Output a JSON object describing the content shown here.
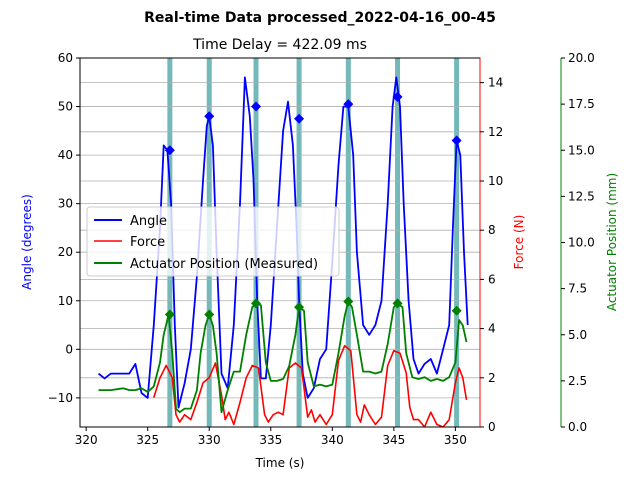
{
  "chart_data": {
    "type": "line",
    "title": "Real-time Data processed_2022-04-16_00-45",
    "subtitle": "Time Delay = 422.09 ms",
    "xlabel": "Time (s)",
    "xlim": [
      319.5,
      352
    ],
    "xticks": [
      320,
      325,
      330,
      335,
      340,
      345,
      350
    ],
    "grid": "horizontal",
    "legend_position": "center-left",
    "axes": {
      "left": {
        "label": "Angle (degrees)",
        "color": "#0000ff",
        "ylim": [
          -16,
          60
        ],
        "ticks": [
          -10,
          0,
          10,
          20,
          30,
          40,
          50,
          60
        ]
      },
      "right1": {
        "label": "Force (N)",
        "color": "#ff0000",
        "ylim": [
          0,
          15
        ],
        "ticks": [
          0,
          2,
          4,
          6,
          8,
          10,
          12,
          14
        ]
      },
      "right2": {
        "label": "Actuator Position (mm)",
        "color": "#008000",
        "ylim": [
          0,
          20
        ],
        "ticks": [
          "0.0",
          "2.5",
          "5.0",
          "7.5",
          "10.0",
          "12.5",
          "15.0",
          "17.5",
          "20.0"
        ]
      }
    },
    "legend": [
      "Angle",
      "Force",
      "Actuator Position (Measured)"
    ],
    "events": [
      326.8,
      330.0,
      333.8,
      337.3,
      341.3,
      345.3,
      350.1
    ],
    "series": [
      {
        "name": "Angle",
        "color": "#0000ff",
        "axis": "left",
        "x": [
          321,
          321.5,
          322,
          322.5,
          323,
          323.5,
          324,
          324.5,
          325,
          325.5,
          326,
          326.3,
          326.6,
          326.9,
          327.2,
          327.5,
          328,
          328.5,
          329,
          329.5,
          329.8,
          330,
          330.3,
          330.6,
          331,
          331.5,
          332,
          332.5,
          332.9,
          333.3,
          333.6,
          333.9,
          334.2,
          334.6,
          335,
          335.5,
          336,
          336.4,
          336.8,
          337.1,
          337.3,
          337.6,
          338,
          338.5,
          339,
          339.5,
          340,
          340.5,
          340.9,
          341.3,
          341.7,
          342,
          342.5,
          343,
          343.5,
          344,
          344.5,
          344.9,
          345.2,
          345.5,
          345.8,
          346.2,
          346.6,
          347,
          347.5,
          348,
          348.5,
          349,
          349.5,
          349.8,
          350.1,
          350.4,
          350.7,
          351
        ],
        "y": [
          -5,
          -6,
          -5,
          -5,
          -5,
          -5,
          -3,
          -9,
          -10,
          5,
          25,
          42,
          41,
          30,
          5,
          -12,
          -7,
          0,
          15,
          35,
          46,
          48,
          42,
          20,
          -5,
          -8,
          5,
          30,
          56,
          48,
          35,
          10,
          -6,
          -6,
          5,
          25,
          45,
          51,
          42,
          25,
          10,
          -5,
          -10,
          -8,
          -2,
          0,
          18,
          38,
          50,
          50,
          40,
          20,
          5,
          3,
          5,
          10,
          30,
          50,
          56,
          50,
          30,
          10,
          -2,
          -5,
          -3,
          -2,
          -5,
          0,
          5,
          25,
          43,
          40,
          20,
          5
        ]
      },
      {
        "name": "Force",
        "color": "#ff0000",
        "axis": "right1",
        "x": [
          325.5,
          326,
          326.5,
          327,
          327.3,
          327.6,
          328,
          328.5,
          329,
          329.5,
          330,
          330.5,
          331,
          331.3,
          331.6,
          332,
          332.5,
          333,
          333.5,
          334,
          334.5,
          334.8,
          335.2,
          335.6,
          336,
          336.5,
          337,
          337.5,
          338,
          338.3,
          338.6,
          339,
          339.5,
          340,
          340.5,
          341,
          341.5,
          342,
          342.3,
          342.6,
          343,
          343.5,
          344,
          344.5,
          345,
          345.5,
          346,
          346.3,
          346.6,
          347,
          347.5,
          348,
          348.5,
          349,
          349.5,
          350,
          350.3,
          350.6,
          350.9
        ],
        "y": [
          1.2,
          2.0,
          2.5,
          2.0,
          0.5,
          0.2,
          0.5,
          0.3,
          1.0,
          1.8,
          2.0,
          2.6,
          1.3,
          0.3,
          0.6,
          0.1,
          1.0,
          2.0,
          2.5,
          2.4,
          0.5,
          0.2,
          0.5,
          0.6,
          0.5,
          2.4,
          2.6,
          2.4,
          0.4,
          0.7,
          0.2,
          0.5,
          0.1,
          0.5,
          2.7,
          3.3,
          3.1,
          0.5,
          0.2,
          0.9,
          0.5,
          0.1,
          0.4,
          2.5,
          3.1,
          3.0,
          2.2,
          0.8,
          0.3,
          0.3,
          0.0,
          0.6,
          0.1,
          0.0,
          0.3,
          1.8,
          2.4,
          2.0,
          1.1
        ]
      },
      {
        "name": "Actuator Position (Measured)",
        "color": "#008000",
        "axis": "right2",
        "x": [
          321,
          322,
          323,
          323.5,
          324,
          324.5,
          325,
          325.5,
          326,
          326.3,
          326.7,
          327,
          327.3,
          327.6,
          328,
          328.5,
          329,
          329.3,
          329.7,
          330,
          330.3,
          330.6,
          331,
          331.5,
          332,
          332.5,
          333,
          333.5,
          333.8,
          334.2,
          334.6,
          335,
          335.5,
          336,
          336.5,
          337,
          337.3,
          337.7,
          338,
          338.5,
          339,
          339.5,
          340,
          340.5,
          341,
          341.3,
          341.6,
          342,
          342.5,
          343,
          343.5,
          344,
          344.5,
          345,
          345.3,
          345.7,
          346,
          346.5,
          347,
          347.5,
          348,
          348.5,
          349,
          349.5,
          350,
          350.3,
          350.6,
          350.9
        ],
        "y": [
          2.0,
          2.0,
          2.1,
          2.0,
          2.0,
          2.1,
          1.9,
          2.2,
          3.5,
          5.0,
          6.1,
          4.0,
          1.0,
          0.8,
          1.0,
          1.0,
          2.0,
          4.0,
          5.5,
          6.1,
          5.5,
          4.0,
          0.8,
          2.0,
          3.0,
          3.0,
          5.0,
          6.5,
          6.7,
          6.6,
          3.5,
          2.5,
          2.5,
          2.6,
          3.3,
          5.0,
          6.5,
          6.3,
          3.5,
          2.2,
          2.3,
          2.2,
          2.3,
          4.0,
          6.0,
          6.8,
          6.5,
          5.0,
          3.0,
          3.0,
          2.9,
          3.0,
          4.5,
          6.5,
          6.7,
          6.5,
          4.0,
          2.7,
          2.6,
          2.7,
          2.5,
          2.6,
          2.5,
          2.7,
          3.5,
          5.8,
          5.5,
          4.6
        ]
      }
    ],
    "markers": {
      "angle": {
        "x": [
          326.8,
          330.0,
          333.8,
          337.3,
          341.3,
          345.3,
          350.1
        ],
        "y": [
          41,
          48,
          50,
          47.5,
          50.5,
          52,
          43
        ]
      },
      "actuator": {
        "x": [
          326.8,
          330.0,
          333.8,
          337.3,
          341.3,
          345.3,
          350.1
        ],
        "y": [
          6.1,
          6.1,
          6.7,
          6.5,
          6.8,
          6.7,
          6.3
        ]
      }
    }
  }
}
